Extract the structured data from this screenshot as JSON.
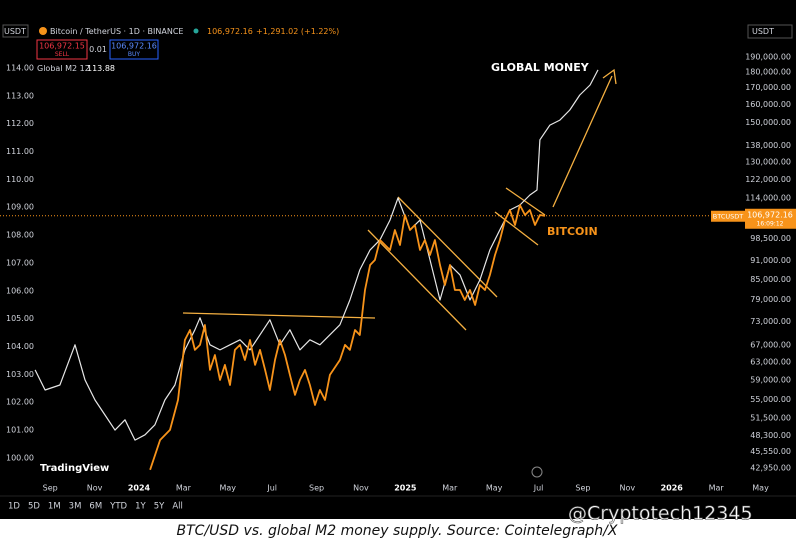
{
  "header": {
    "quote_currency": "USDT",
    "price": "106,972.16",
    "change": "+1,291.02 (+1.22%)",
    "sell": "106,972.15",
    "sell_label": "SELL",
    "spread": "0.01",
    "buy": "106,972.16",
    "buy_label": "BUY",
    "right_currency": "USDT"
  },
  "toolbar": {
    "ranges": [
      "1D",
      "5D",
      "1M",
      "3M",
      "6M",
      "YTD",
      "1Y",
      "5Y",
      "All"
    ],
    "logo": "TradingView"
  },
  "caption": "BTC/USD vs. global M2 money supply. Source: Cointelegraph/X",
  "watermark": "@Cryptotech12345",
  "chart_data": {
    "type": "line",
    "annotations": [
      "GLOBAL MONEY",
      "BITCOIN"
    ],
    "xlim": [
      -6.26,
      27.3
    ],
    "xticks": [
      {
        "value": -4,
        "label": "Sep"
      },
      {
        "value": -2,
        "label": "Nov"
      },
      {
        "value": 0,
        "label": "2024"
      },
      {
        "value": 2,
        "label": "Mar"
      },
      {
        "value": 4,
        "label": "May"
      },
      {
        "value": 6,
        "label": "Jul"
      },
      {
        "value": 8,
        "label": "Sep"
      },
      {
        "value": 10,
        "label": "Nov"
      },
      {
        "value": 12,
        "label": "2025"
      },
      {
        "value": 14,
        "label": "Mar"
      },
      {
        "value": 16,
        "label": "May"
      },
      {
        "value": 18,
        "label": "Jul"
      },
      {
        "value": 20,
        "label": "Sep"
      },
      {
        "value": 22,
        "label": "Nov"
      },
      {
        "value": 24,
        "label": "2026"
      },
      {
        "value": 26,
        "label": "Mar"
      },
      {
        "value": 28,
        "label": "May"
      }
    ],
    "ylim": [
      99.28,
      115.65
    ],
    "yticks": [
      {
        "value": 100,
        "label": "100.00"
      },
      {
        "value": 101,
        "label": "101.00"
      },
      {
        "value": 102,
        "label": "102.00"
      },
      {
        "value": 103,
        "label": "103.00"
      },
      {
        "value": 104,
        "label": "104.00"
      },
      {
        "value": 105,
        "label": "105.00"
      },
      {
        "value": 106,
        "label": "106.00"
      },
      {
        "value": 107,
        "label": "107.00"
      },
      {
        "value": 108,
        "label": "108.00"
      },
      {
        "value": 109,
        "label": "109.00"
      },
      {
        "value": 110,
        "label": "110.00"
      },
      {
        "value": 111,
        "label": "111.00"
      },
      {
        "value": 112,
        "label": "112.00"
      },
      {
        "value": 113,
        "label": "113.00"
      },
      {
        "value": 114,
        "label": "114.00"
      }
    ],
    "y2lim": [
      41420,
      215630
    ],
    "y2_log": true,
    "y2ticks": [
      {
        "value": 190000,
        "label": "190,000.00"
      },
      {
        "value": 180000,
        "label": "180,000.00"
      },
      {
        "value": 170000,
        "label": "170,000.00"
      },
      {
        "value": 160000,
        "label": "160,000.00"
      },
      {
        "value": 150000,
        "label": "150,000.00"
      },
      {
        "value": 138000,
        "label": "138,000.00"
      },
      {
        "value": 130000,
        "label": "130,000.00"
      },
      {
        "value": 122000,
        "label": "122,000.00"
      },
      {
        "value": 114000,
        "label": "114,000.00"
      },
      {
        "value": 98500,
        "label": "98,500.00"
      },
      {
        "value": 91000,
        "label": "91,000.00"
      },
      {
        "value": 85000,
        "label": "85,000.00"
      },
      {
        "value": 79000,
        "label": "79,000.00"
      },
      {
        "value": 73000,
        "label": "73,000.00"
      },
      {
        "value": 67000,
        "label": "67,000.00"
      },
      {
        "value": 63000,
        "label": "63,000.00"
      },
      {
        "value": 59000,
        "label": "59,000.00"
      },
      {
        "value": 55000,
        "label": "55,000.00"
      },
      {
        "value": 51500,
        "label": "51,500.00"
      },
      {
        "value": 48300,
        "label": "48,300.00"
      },
      {
        "value": 45550,
        "label": "45,550.00"
      },
      {
        "value": 42950,
        "label": "42,950.00"
      }
    ],
    "grid": false,
    "price_line": {
      "value": 106972.16,
      "label": "106,972.16",
      "symbol": "BTCUSDT",
      "countdown": "16:09:12",
      "color": "#f7931a"
    },
    "series": [
      {
        "name": "Global M2 12",
        "last_value": 113.88,
        "color": "#e6e6e6",
        "axis": "y",
        "x": [
          -4.68,
          -4.23,
          -3.56,
          -2.88,
          -2.43,
          -1.98,
          -1.53,
          -1.08,
          -0.63,
          -0.18,
          0.27,
          0.72,
          1.17,
          1.62,
          2.07,
          2.52,
          2.75,
          3.2,
          3.65,
          4.1,
          4.55,
          5.0,
          5.45,
          5.9,
          6.35,
          6.8,
          7.25,
          7.7,
          8.15,
          8.6,
          9.05,
          9.5,
          9.95,
          10.41,
          10.86,
          11.31,
          11.67,
          12.21,
          12.66,
          13.11,
          13.56,
          14.01,
          14.46,
          14.91,
          15.36,
          15.81,
          16.26,
          16.71,
          17.16,
          17.61,
          17.93,
          18.06,
          18.51,
          18.96,
          19.41,
          19.86,
          20.32,
          20.68
        ],
        "values": [
          103.16,
          102.44,
          102.62,
          104.06,
          102.8,
          102.08,
          101.54,
          101.0,
          101.37,
          100.64,
          100.83,
          101.19,
          102.08,
          102.62,
          103.88,
          104.6,
          105.03,
          104.06,
          103.88,
          104.06,
          104.24,
          103.88,
          104.42,
          104.96,
          104.06,
          104.6,
          103.88,
          104.24,
          104.06,
          104.42,
          104.78,
          105.67,
          106.75,
          107.47,
          107.83,
          108.54,
          109.33,
          108.19,
          108.54,
          107.11,
          105.67,
          106.93,
          106.57,
          105.67,
          106.39,
          107.47,
          108.19,
          108.9,
          109.08,
          109.44,
          109.62,
          111.42,
          111.95,
          112.13,
          112.49,
          113.03,
          113.39,
          113.93
        ]
      },
      {
        "name": "Bitcoin / TetherUS · 1D · BINANCE",
        "color": "#f7931a",
        "axis": "y2",
        "x": [
          0.5,
          0.95,
          1.4,
          1.76,
          2.07,
          2.3,
          2.52,
          2.75,
          2.97,
          3.2,
          3.42,
          3.65,
          3.87,
          4.1,
          4.32,
          4.55,
          4.77,
          5.0,
          5.23,
          5.45,
          5.68,
          5.9,
          6.13,
          6.35,
          6.58,
          6.8,
          7.03,
          7.25,
          7.48,
          7.7,
          7.93,
          8.15,
          8.38,
          8.6,
          9.05,
          9.28,
          9.5,
          9.73,
          9.95,
          10.18,
          10.41,
          10.63,
          10.86,
          11.31,
          11.53,
          11.76,
          11.98,
          12.21,
          12.43,
          12.66,
          12.88,
          13.11,
          13.33,
          13.56,
          13.78,
          14.01,
          14.23,
          14.46,
          14.68,
          14.91,
          15.14,
          15.36,
          15.59,
          15.81,
          16.04,
          16.26,
          16.49,
          16.71,
          16.94,
          17.16,
          17.39,
          17.61,
          17.84,
          18.06,
          18.29
        ],
        "values": [
          42660,
          47520,
          49290,
          54930,
          68250,
          70760,
          65840,
          67030,
          72050,
          61240,
          64640,
          59050,
          62360,
          57990,
          65840,
          67030,
          63480,
          68250,
          62360,
          65840,
          61240,
          56940,
          63480,
          68250,
          64640,
          60140,
          55940,
          59050,
          61240,
          57990,
          53940,
          56940,
          54930,
          60140,
          63480,
          67030,
          65840,
          70760,
          69480,
          81780,
          89530,
          91160,
          98000,
          94510,
          101610,
          96240,
          107270,
          101610,
          103460,
          94510,
          98000,
          92820,
          98000,
          89530,
          83280,
          89530,
          81780,
          81780,
          78870,
          81780,
          77460,
          83280,
          81780,
          86340,
          92820,
          98000,
          105360,
          109230,
          103460,
          111230,
          107270,
          109230,
          103460,
          107270,
          106972.16
        ]
      }
    ]
  }
}
